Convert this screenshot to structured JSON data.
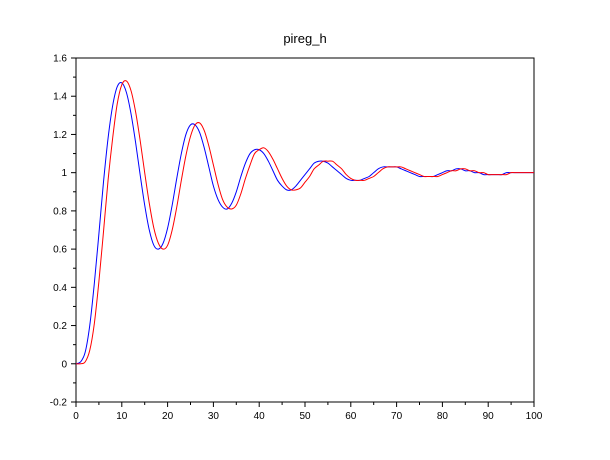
{
  "chart_data": {
    "type": "line",
    "title": "pireg_h",
    "xlabel": "",
    "ylabel": "",
    "xlim": [
      0,
      100
    ],
    "ylim": [
      -0.2,
      1.6
    ],
    "grid": false,
    "x_ticks": [
      0,
      10,
      20,
      30,
      40,
      50,
      60,
      70,
      80,
      90,
      100
    ],
    "x_tick_labels": [
      "0",
      "10",
      "20",
      "30",
      "40",
      "50",
      "60",
      "70",
      "80",
      "90",
      "100"
    ],
    "y_ticks": [
      -0.2,
      0,
      0.2,
      0.4,
      0.6,
      0.8,
      1,
      1.2,
      1.4,
      1.6
    ],
    "y_tick_labels": [
      "-0.2",
      "0",
      "0.2",
      "0.4",
      "0.6",
      "0.8",
      "1",
      "1.2",
      "1.4",
      "1.6"
    ],
    "series": [
      {
        "color": "#0000ff",
        "x": [
          0,
          1,
          2,
          3,
          4,
          5,
          6,
          7,
          8,
          9,
          10,
          11,
          12,
          13,
          14,
          15,
          16,
          17,
          18,
          19,
          20,
          21,
          22,
          23,
          24,
          25,
          26,
          27,
          28,
          29,
          30,
          31,
          32,
          33,
          34,
          35,
          36,
          37,
          38,
          39,
          40,
          41,
          42,
          43,
          44,
          45,
          46,
          47,
          48,
          49,
          50,
          51,
          52,
          53,
          54,
          55,
          56,
          57,
          58,
          59,
          60,
          61,
          62,
          63,
          64,
          65,
          66,
          67,
          68,
          69,
          70,
          71,
          72,
          73,
          74,
          75,
          76,
          77,
          78,
          79,
          80,
          81,
          82,
          83,
          84,
          85,
          86,
          87,
          88,
          89,
          90,
          91,
          92,
          93,
          94,
          95,
          96,
          97,
          98,
          99,
          100
        ],
        "y": [
          0,
          0.01,
          0.06,
          0.2,
          0.42,
          0.68,
          0.95,
          1.18,
          1.35,
          1.45,
          1.47,
          1.42,
          1.31,
          1.16,
          0.99,
          0.83,
          0.7,
          0.62,
          0.6,
          0.63,
          0.71,
          0.83,
          0.97,
          1.1,
          1.2,
          1.25,
          1.25,
          1.21,
          1.13,
          1.03,
          0.93,
          0.86,
          0.82,
          0.81,
          0.84,
          0.9,
          0.98,
          1.05,
          1.1,
          1.12,
          1.12,
          1.1,
          1.06,
          1.01,
          0.96,
          0.93,
          0.91,
          0.91,
          0.93,
          0.96,
          0.99,
          1.02,
          1.05,
          1.06,
          1.06,
          1.05,
          1.03,
          1.01,
          0.99,
          0.97,
          0.96,
          0.96,
          0.96,
          0.97,
          0.98,
          1.0,
          1.02,
          1.03,
          1.03,
          1.03,
          1.03,
          1.02,
          1.01,
          1.0,
          0.99,
          0.98,
          0.98,
          0.98,
          0.98,
          0.99,
          1.0,
          1.01,
          1.01,
          1.02,
          1.02,
          1.01,
          1.01,
          1.0,
          1.0,
          0.99,
          0.99,
          0.99,
          0.99,
          0.99,
          1.0,
          1.0,
          1.0,
          1.0,
          1.0,
          1.0,
          1.0
        ]
      },
      {
        "color": "#ff0000",
        "x": [
          0,
          1,
          2,
          3,
          4,
          5,
          6,
          7,
          8,
          9,
          10,
          11,
          12,
          13,
          14,
          15,
          16,
          17,
          18,
          19,
          20,
          21,
          22,
          23,
          24,
          25,
          26,
          27,
          28,
          29,
          30,
          31,
          32,
          33,
          34,
          35,
          36,
          37,
          38,
          39,
          40,
          41,
          42,
          43,
          44,
          45,
          46,
          47,
          48,
          49,
          50,
          51,
          52,
          53,
          54,
          55,
          56,
          57,
          58,
          59,
          60,
          61,
          62,
          63,
          64,
          65,
          66,
          67,
          68,
          69,
          70,
          71,
          72,
          73,
          74,
          75,
          76,
          77,
          78,
          79,
          80,
          81,
          82,
          83,
          84,
          85,
          86,
          87,
          88,
          89,
          90,
          91,
          92,
          93,
          94,
          95,
          96,
          97,
          98,
          99,
          100
        ],
        "y": [
          0,
          0,
          0.01,
          0.07,
          0.21,
          0.43,
          0.69,
          0.96,
          1.18,
          1.36,
          1.46,
          1.48,
          1.43,
          1.32,
          1.17,
          1.0,
          0.84,
          0.71,
          0.63,
          0.6,
          0.62,
          0.7,
          0.82,
          0.96,
          1.09,
          1.19,
          1.25,
          1.26,
          1.22,
          1.14,
          1.04,
          0.94,
          0.86,
          0.82,
          0.81,
          0.83,
          0.89,
          0.97,
          1.04,
          1.1,
          1.12,
          1.13,
          1.11,
          1.07,
          1.02,
          0.97,
          0.93,
          0.91,
          0.91,
          0.92,
          0.95,
          0.98,
          1.02,
          1.04,
          1.06,
          1.06,
          1.06,
          1.04,
          1.02,
          0.99,
          0.97,
          0.96,
          0.96,
          0.96,
          0.97,
          0.98,
          1.0,
          1.02,
          1.03,
          1.03,
          1.03,
          1.03,
          1.02,
          1.01,
          1.0,
          0.99,
          0.98,
          0.98,
          0.98,
          0.98,
          0.99,
          1.0,
          1.01,
          1.01,
          1.02,
          1.02,
          1.01,
          1.01,
          1.0,
          1.0,
          0.99,
          0.99,
          0.99,
          0.99,
          0.99,
          1.0,
          1.0,
          1.0,
          1.0,
          1.0,
          1.0
        ]
      }
    ]
  }
}
